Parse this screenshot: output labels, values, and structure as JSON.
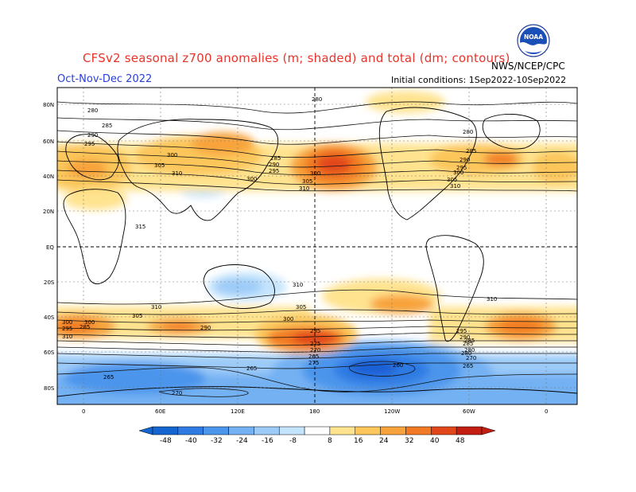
{
  "header": {
    "title": "CFSv2 seasonal z700 anomalies (m; shaded) and total (dm; contours)",
    "period": "Oct-Nov-Dec 2022",
    "initial_conditions": "Initial conditions: 1Sep2022-10Sep2022",
    "agency": "NWS/NCEP/CPC",
    "logo_text": "NOAA"
  },
  "map": {
    "lat_labels": [
      "80N",
      "60N",
      "40N",
      "20N",
      "EQ",
      "20S",
      "40S",
      "60S",
      "80S"
    ],
    "lon_labels": [
      "0",
      "60E",
      "120E",
      "180",
      "120W",
      "60W",
      "0"
    ],
    "contour_labels": [
      "280",
      "280",
      "285",
      "290",
      "295",
      "300",
      "305",
      "310",
      "315",
      "285",
      "290",
      "295",
      "300",
      "305",
      "310",
      "300",
      "280",
      "285",
      "290",
      "295",
      "300",
      "305",
      "310",
      "310",
      "310",
      "310",
      "305",
      "300",
      "295",
      "290",
      "285",
      "300",
      "295",
      "290",
      "285",
      "280",
      "275",
      "270",
      "265",
      "260",
      "265",
      "270",
      "275",
      "280",
      "285",
      "265",
      "270",
      "265",
      "300",
      "295",
      "310",
      "305"
    ],
    "anomaly_colors": {
      "m48": "#1a5fd6",
      "m40": "#2f7ae3",
      "m32": "#4c95ec",
      "m24": "#73b1f3",
      "m16": "#9ccbf8",
      "m8": "#c4e4fc",
      "p8": "#ffe38f",
      "p16": "#fcc65a",
      "p24": "#f8a33b",
      "p32": "#f27a24",
      "p40": "#e2471a",
      "p48": "#c41e12"
    }
  },
  "colorbar": {
    "labels": [
      "-48",
      "-40",
      "-32",
      "-24",
      "-16",
      "-8",
      "8",
      "16",
      "24",
      "32",
      "40",
      "48"
    ],
    "colors": [
      "#1565d0",
      "#2f7ae3",
      "#4c95ec",
      "#73b1f3",
      "#9ccbf8",
      "#c4e4fc",
      "#ffffff",
      "#ffe38f",
      "#fcc65a",
      "#f8a33b",
      "#f27a24",
      "#e2471a",
      "#c41e12"
    ]
  }
}
